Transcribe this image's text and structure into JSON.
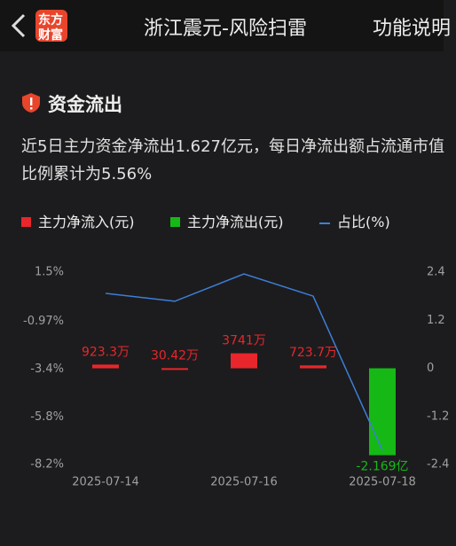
{
  "header": {
    "logo_top": "东方",
    "logo_bottom": "财富",
    "title": "浙江震元-风险扫雷",
    "action": "功能说明"
  },
  "section": {
    "title": "资金流出",
    "description": "近5日主力资金净流出1.627亿元，每日净流出额占流通市值比例累计为5.56%"
  },
  "chart_data": {
    "type": "bar",
    "categories": [
      "2025-07-14",
      null,
      "2025-07-16",
      null,
      "2025-07-18"
    ],
    "series": [
      {
        "name": "主力净流入(元)",
        "color": "#e8262b",
        "type": "bar",
        "axis": "y2",
        "values": [
          0.09233,
          0.003042,
          0.3741,
          0.07237,
          null
        ],
        "value_labels": [
          "923.3万",
          "30.42万",
          "3741万",
          "723.7万",
          null
        ]
      },
      {
        "name": "主力净流出(元)",
        "color": "#16b816",
        "type": "bar",
        "axis": "y2",
        "values": [
          null,
          null,
          null,
          null,
          -2.169
        ],
        "value_labels": [
          null,
          null,
          null,
          null,
          "-2.169亿"
        ]
      },
      {
        "name": "占比(%)",
        "color": "#3d7fd9",
        "type": "line",
        "values": [
          0.43,
          0.03,
          1.41,
          0.29,
          -7.49
        ]
      }
    ],
    "ylim": [
      -8.2,
      1.5
    ],
    "yticks": [
      {
        "value": 1.5,
        "label": "1.5%"
      },
      {
        "value": -0.97,
        "label": "-0.97%"
      },
      {
        "value": -3.4,
        "label": "-3.4%"
      },
      {
        "value": -5.8,
        "label": "-5.8%"
      },
      {
        "value": -8.2,
        "label": "-8.2%"
      }
    ],
    "y2lim": [
      -2.4,
      2.4
    ],
    "y2ticks": [
      2.4,
      1.2,
      0,
      -1.2,
      -2.4
    ]
  }
}
